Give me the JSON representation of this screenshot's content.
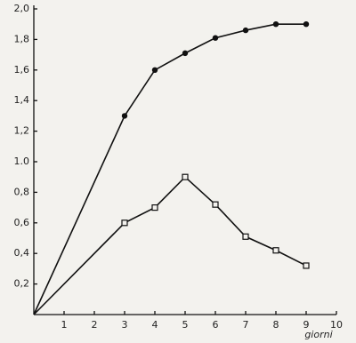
{
  "chart_data": {
    "type": "line",
    "x_label": "giorni",
    "x": [
      0,
      3,
      4,
      5,
      6,
      7,
      8,
      9
    ],
    "series": [
      {
        "color": "#111111",
        "marker": "circle",
        "values": [
          0,
          1.3,
          1.6,
          1.71,
          1.81,
          1.86,
          1.9,
          1.9
        ]
      },
      {
        "color": "#111111",
        "marker": "square",
        "values": [
          0,
          0.6,
          0.7,
          0.9,
          0.72,
          0.51,
          0.42,
          0.32
        ]
      }
    ],
    "xlim": [
      0,
      10
    ],
    "xticks": [
      1,
      2,
      3,
      4,
      5,
      6,
      7,
      8,
      9,
      10
    ],
    "ylim": [
      0,
      2.0
    ],
    "yticks": [
      {
        "value": 0.2,
        "label": "0,2"
      },
      {
        "value": 0.4,
        "label": "0,4"
      },
      {
        "value": 0.6,
        "label": "0,6"
      },
      {
        "value": 0.8,
        "label": "0,8"
      },
      {
        "value": 1.0,
        "label": "1.0"
      },
      {
        "value": 1.2,
        "label": "1,2"
      },
      {
        "value": 1.4,
        "label": "1,4"
      },
      {
        "value": 1.6,
        "label": "1,6"
      },
      {
        "value": 1.8,
        "label": "1,8"
      },
      {
        "value": 2.0,
        "label": "2,0"
      }
    ],
    "grid": false
  }
}
